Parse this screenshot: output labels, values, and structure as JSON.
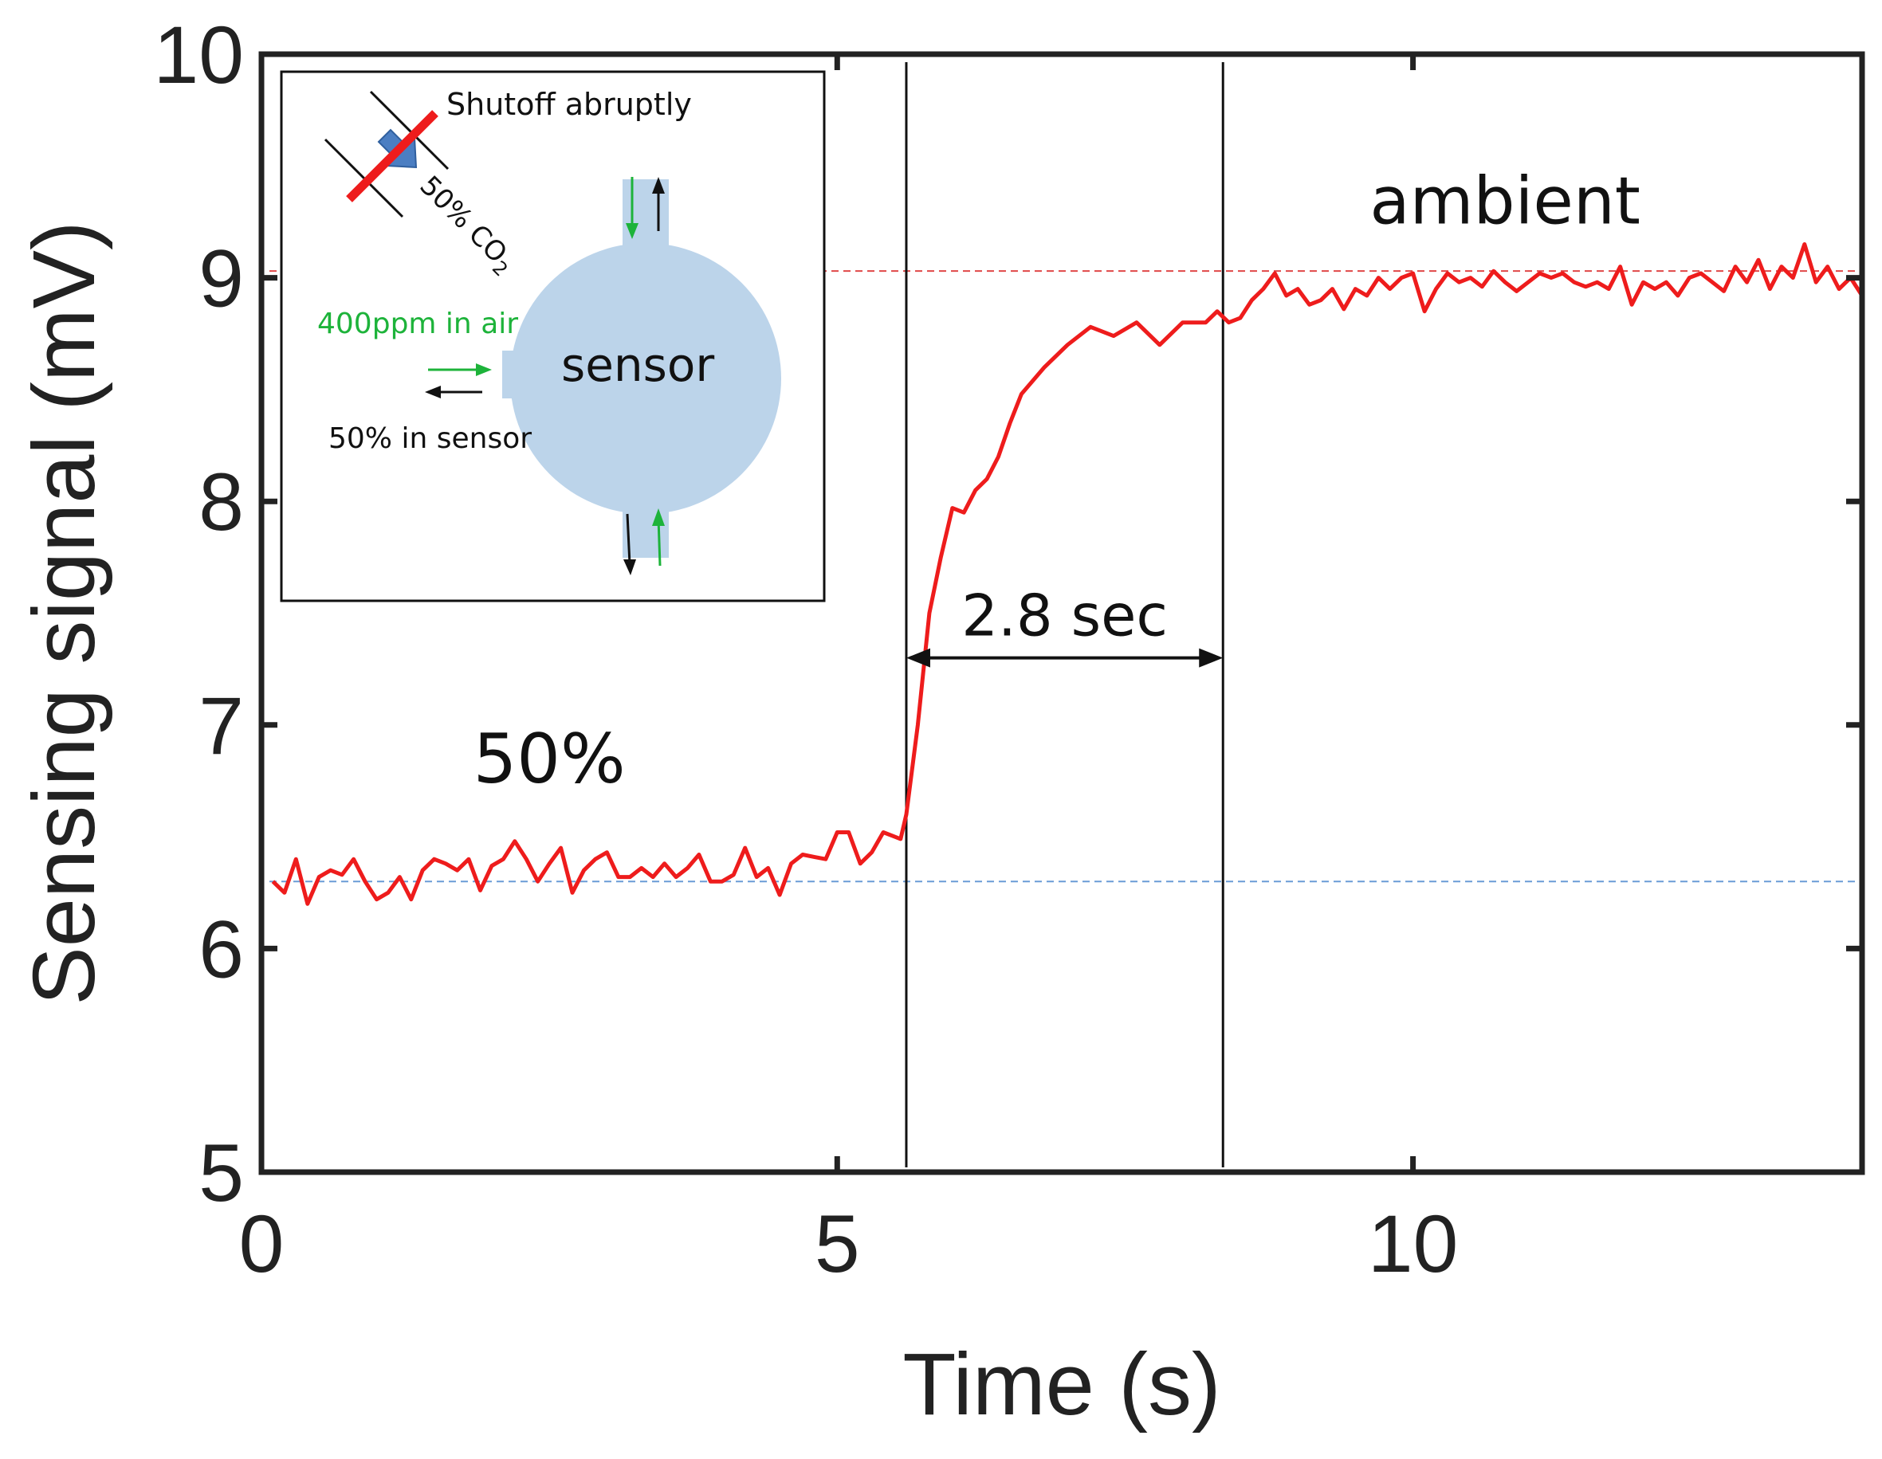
{
  "chart_data": {
    "type": "line",
    "xlabel": "Time (s)",
    "ylabel": "Sensing signal (mV)",
    "xlim": [
      0,
      13.9
    ],
    "ylim": [
      5,
      10
    ],
    "x_ticks": [
      0,
      5,
      10
    ],
    "y_ticks": [
      5,
      6,
      7,
      8,
      9,
      10
    ],
    "x_tick_labels": [
      "0",
      "5",
      "10"
    ],
    "y_tick_labels": [
      "5",
      "6",
      "7",
      "8",
      "9",
      "10"
    ],
    "grid": false,
    "series": [
      {
        "color": "#ee1c1c",
        "x": [
          0.1,
          0.2,
          0.3,
          0.4,
          0.5,
          0.6,
          0.7,
          0.8,
          0.9,
          1.0,
          1.1,
          1.2,
          1.3,
          1.4,
          1.5,
          1.6,
          1.7,
          1.8,
          1.9,
          2.0,
          2.1,
          2.2,
          2.3,
          2.4,
          2.5,
          2.6,
          2.7,
          2.8,
          2.9,
          3.0,
          3.1,
          3.2,
          3.3,
          3.4,
          3.5,
          3.6,
          3.7,
          3.8,
          3.9,
          4.0,
          4.1,
          4.2,
          4.3,
          4.4,
          4.5,
          4.6,
          4.7,
          4.8,
          4.9,
          5.0,
          5.1,
          5.2,
          5.3,
          5.4,
          5.5,
          5.55,
          5.6,
          5.7,
          5.8,
          5.9,
          6.0,
          6.1,
          6.2,
          6.3,
          6.4,
          6.5,
          6.6,
          6.8,
          7.0,
          7.2,
          7.4,
          7.6,
          7.8,
          8.0,
          8.2,
          8.3,
          8.4,
          8.5,
          8.6,
          8.7,
          8.8,
          8.9,
          9.0,
          9.1,
          9.2,
          9.3,
          9.4,
          9.5,
          9.6,
          9.7,
          9.8,
          9.9,
          10.0,
          10.1,
          10.2,
          10.3,
          10.4,
          10.5,
          10.6,
          10.7,
          10.8,
          10.9,
          11.0,
          11.1,
          11.2,
          11.3,
          11.4,
          11.5,
          11.6,
          11.7,
          11.8,
          11.9,
          12.0,
          12.1,
          12.2,
          12.3,
          12.4,
          12.5,
          12.6,
          12.7,
          12.8,
          12.9,
          13.0,
          13.1,
          13.2,
          13.3,
          13.4,
          13.5,
          13.6,
          13.7,
          13.8,
          13.9
        ],
        "y": [
          6.3,
          6.25,
          6.4,
          6.2,
          6.32,
          6.35,
          6.33,
          6.4,
          6.3,
          6.22,
          6.25,
          6.32,
          6.22,
          6.35,
          6.4,
          6.38,
          6.35,
          6.4,
          6.26,
          6.37,
          6.4,
          6.48,
          6.4,
          6.3,
          6.38,
          6.45,
          6.25,
          6.35,
          6.4,
          6.43,
          6.32,
          6.32,
          6.36,
          6.32,
          6.38,
          6.32,
          6.36,
          6.42,
          6.3,
          6.3,
          6.33,
          6.45,
          6.32,
          6.36,
          6.24,
          6.38,
          6.42,
          6.41,
          6.4,
          6.52,
          6.52,
          6.38,
          6.43,
          6.52,
          6.5,
          6.49,
          6.6,
          7.0,
          7.5,
          7.75,
          7.97,
          7.95,
          8.05,
          8.1,
          8.2,
          8.35,
          8.48,
          8.6,
          8.7,
          8.78,
          8.74,
          8.8,
          8.7,
          8.8,
          8.8,
          8.85,
          8.8,
          8.82,
          8.9,
          8.95,
          9.02,
          8.92,
          8.95,
          8.88,
          8.9,
          8.95,
          8.86,
          8.95,
          8.92,
          9.0,
          8.95,
          9.0,
          9.02,
          8.85,
          8.95,
          9.02,
          8.98,
          9.0,
          8.96,
          9.03,
          8.98,
          8.94,
          8.98,
          9.02,
          9.0,
          9.02,
          8.98,
          8.96,
          8.98,
          8.95,
          9.05,
          8.88,
          8.98,
          8.95,
          8.98,
          8.92,
          9.0,
          9.02,
          8.98,
          8.94,
          9.05,
          8.98,
          9.08,
          8.95,
          9.05,
          9.0,
          9.15,
          8.98,
          9.05,
          8.95,
          9.0,
          8.92
        ]
      }
    ],
    "reference_lines": [
      {
        "y": 9.03,
        "color": "#e04848",
        "style": "dashed"
      },
      {
        "y": 6.3,
        "color": "#6a9bd6",
        "style": "dashed"
      }
    ],
    "vertical_lines": [
      {
        "x": 5.6
      },
      {
        "x": 8.35
      }
    ],
    "annotations": {
      "interval": {
        "text": "2.8 sec",
        "x_start": 5.6,
        "x_end": 8.35,
        "y": 7.3
      },
      "left_label": {
        "text": "50%",
        "x": 2.5,
        "y": 6.85
      },
      "right_label": {
        "text": "ambient",
        "x": 10.8,
        "y": 9.35
      }
    },
    "inset": {
      "shutoff_label": "Shutoff abruptly",
      "gas_label": "50% CO",
      "gas_subscript": "2",
      "air_label": "400ppm in air",
      "sensor_out_label": "50% in sensor",
      "sensor_label": "sensor",
      "colors": {
        "valve_red": "#ee1c1c",
        "sensor_blue": "#bcd4ea",
        "arrow_green": "#1db33a",
        "flow_blue": "#4b7ec2"
      }
    }
  }
}
